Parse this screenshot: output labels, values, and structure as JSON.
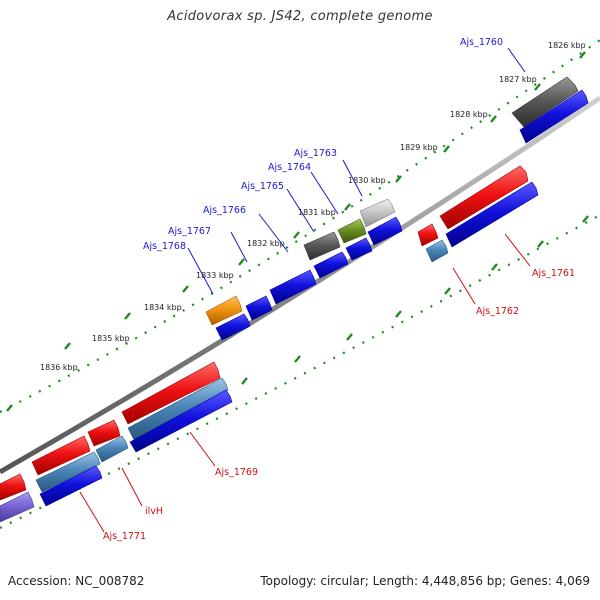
{
  "title": "Acidovorax sp. JS42, complete genome",
  "footer": {
    "accession": "Accession: NC_008782",
    "topology": "Topology: circular; Length: 4,448,856 bp; Genes: 4,069"
  },
  "ticks": [
    "1826 kbp",
    "1827 kbp",
    "1828 kbp",
    "1829 kbp",
    "1830 kbp",
    "1831 kbp",
    "1832 kbp",
    "1833 kbp",
    "1834 kbp",
    "1835 kbp",
    "1836 kbp"
  ],
  "genes_top": [
    "Ajs_1760",
    "Ajs_1763",
    "Ajs_1764",
    "Ajs_1765",
    "Ajs_1766",
    "Ajs_1767",
    "Ajs_1768"
  ],
  "genes_bottom": [
    "Ajs_1761",
    "Ajs_1762",
    "Ajs_1769",
    "ilvH",
    "Ajs_1771"
  ],
  "colors": {
    "backbone": "#8a8a8a",
    "tick": "#1f8a1f",
    "cds_blue": "#1111dd",
    "forward_red": "#ee1111",
    "steel": "#4a86b8",
    "grey_dark": "#555555",
    "grey_light": "#c8c8c8",
    "olive": "#6b8e23",
    "orange": "#f29411",
    "violet": "#7a64d6"
  }
}
